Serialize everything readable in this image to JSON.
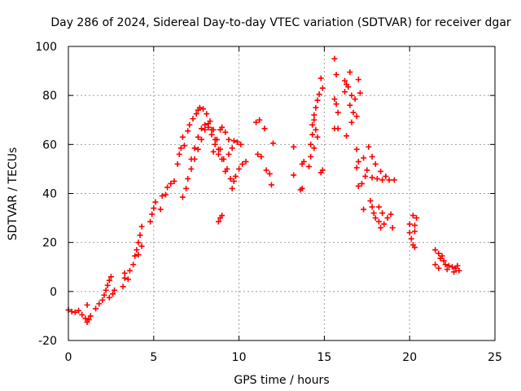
{
  "chart_data": {
    "type": "scatter",
    "title": "Day 286 of 2024, Sidereal Day-to-day VTEC variation (SDTVAR) for receiver dgar",
    "xlabel": "GPS time / hours",
    "ylabel": "SDTVAR / TECUs",
    "xlim": [
      0,
      25
    ],
    "ylim": [
      -20,
      100
    ],
    "x_ticks": [
      0,
      5,
      10,
      15,
      20,
      25
    ],
    "y_ticks": [
      -20,
      0,
      20,
      40,
      60,
      80,
      100
    ],
    "grid": true,
    "marker": "+",
    "color": "#ff0000",
    "series": [
      {
        "name": "SDTVAR",
        "points": [
          [
            0.0,
            -7.5
          ],
          [
            0.2,
            -8.2
          ],
          [
            0.4,
            -8.5
          ],
          [
            0.6,
            -7.8
          ],
          [
            0.8,
            -9.5
          ],
          [
            1.0,
            -11.0
          ],
          [
            1.1,
            -12.5
          ],
          [
            1.2,
            -11.5
          ],
          [
            1.3,
            -10.0
          ],
          [
            1.1,
            -5.5
          ],
          [
            1.6,
            -7.0
          ],
          [
            1.8,
            -5.0
          ],
          [
            2.0,
            -3.5
          ],
          [
            2.1,
            -1.5
          ],
          [
            2.2,
            0.5
          ],
          [
            2.3,
            2.5
          ],
          [
            2.4,
            4.5
          ],
          [
            2.5,
            6.0
          ],
          [
            2.4,
            -2.5
          ],
          [
            2.6,
            -1.0
          ],
          [
            2.7,
            0.5
          ],
          [
            3.2,
            2.0
          ],
          [
            3.3,
            5.5
          ],
          [
            3.3,
            7.5
          ],
          [
            3.5,
            5.0
          ],
          [
            3.6,
            8.5
          ],
          [
            3.8,
            11.0
          ],
          [
            3.9,
            14.5
          ],
          [
            4.0,
            17.0
          ],
          [
            4.1,
            20.0
          ],
          [
            4.2,
            23.0
          ],
          [
            4.3,
            26.5
          ],
          [
            4.1,
            15.0
          ],
          [
            4.3,
            18.5
          ],
          [
            4.8,
            28.5
          ],
          [
            4.9,
            31.5
          ],
          [
            5.0,
            34.0
          ],
          [
            5.1,
            36.5
          ],
          [
            5.4,
            33.5
          ],
          [
            5.5,
            39.0
          ],
          [
            5.7,
            39.5
          ],
          [
            5.8,
            42.5
          ],
          [
            6.0,
            44.0
          ],
          [
            6.2,
            45.0
          ],
          [
            6.4,
            52.0
          ],
          [
            6.5,
            56.0
          ],
          [
            6.6,
            58.5
          ],
          [
            6.8,
            59.5
          ],
          [
            6.7,
            63.0
          ],
          [
            7.0,
            65.5
          ],
          [
            7.1,
            68.0
          ],
          [
            7.3,
            70.5
          ],
          [
            7.5,
            72.5
          ],
          [
            7.6,
            74.0
          ],
          [
            7.7,
            75.0
          ],
          [
            7.9,
            74.5
          ],
          [
            8.1,
            72.5
          ],
          [
            8.3,
            69.5
          ],
          [
            8.5,
            66.0
          ],
          [
            8.7,
            62.0
          ],
          [
            8.9,
            58.0
          ],
          [
            9.1,
            54.0
          ],
          [
            9.3,
            50.0
          ],
          [
            9.5,
            46.0
          ],
          [
            9.6,
            42.0
          ],
          [
            9.7,
            45.0
          ],
          [
            6.7,
            38.5
          ],
          [
            6.9,
            42.0
          ],
          [
            7.0,
            46.0
          ],
          [
            7.2,
            50.0
          ],
          [
            7.4,
            54.0
          ],
          [
            7.6,
            58.0
          ],
          [
            7.8,
            62.0
          ],
          [
            8.0,
            66.0
          ],
          [
            8.2,
            68.5
          ],
          [
            8.4,
            66.0
          ],
          [
            8.6,
            62.0
          ],
          [
            8.8,
            58.0
          ],
          [
            9.0,
            54.0
          ],
          [
            9.2,
            49.0
          ],
          [
            7.2,
            54.0
          ],
          [
            7.4,
            58.5
          ],
          [
            7.6,
            63.0
          ],
          [
            7.8,
            66.5
          ],
          [
            8.0,
            68.0
          ],
          [
            8.2,
            67.0
          ],
          [
            8.4,
            64.0
          ],
          [
            8.6,
            60.0
          ],
          [
            8.8,
            56.0
          ],
          [
            8.5,
            57.0
          ],
          [
            8.7,
            62.0
          ],
          [
            8.9,
            66.0
          ],
          [
            9.0,
            67.0
          ],
          [
            9.2,
            65.0
          ],
          [
            9.4,
            62.0
          ],
          [
            8.8,
            28.5
          ],
          [
            8.9,
            30.0
          ],
          [
            9.0,
            31.0
          ],
          [
            9.4,
            56.0
          ],
          [
            9.6,
            58.5
          ],
          [
            9.7,
            61.5
          ],
          [
            9.9,
            61.0
          ],
          [
            10.1,
            60.0
          ],
          [
            9.8,
            47.0
          ],
          [
            10.0,
            50.0
          ],
          [
            10.2,
            52.0
          ],
          [
            10.4,
            53.0
          ],
          [
            11.0,
            69.0
          ],
          [
            11.2,
            70.0
          ],
          [
            11.5,
            66.5
          ],
          [
            11.1,
            56.0
          ],
          [
            11.3,
            55.0
          ],
          [
            11.6,
            49.5
          ],
          [
            11.8,
            48.0
          ],
          [
            11.9,
            43.5
          ],
          [
            12.0,
            60.5
          ],
          [
            13.2,
            59.0
          ],
          [
            13.2,
            47.5
          ],
          [
            13.6,
            41.5
          ],
          [
            13.7,
            42.0
          ],
          [
            13.7,
            52.0
          ],
          [
            13.8,
            53.0
          ],
          [
            14.1,
            51.0
          ],
          [
            14.2,
            55.0
          ],
          [
            14.2,
            60.0
          ],
          [
            14.3,
            64.0
          ],
          [
            14.3,
            68.0
          ],
          [
            14.4,
            72.0
          ],
          [
            14.5,
            75.0
          ],
          [
            14.6,
            78.0
          ],
          [
            14.7,
            80.5
          ],
          [
            14.4,
            58.5
          ],
          [
            14.6,
            63.0
          ],
          [
            14.5,
            66.0
          ],
          [
            14.4,
            70.0
          ],
          [
            14.8,
            48.5
          ],
          [
            14.8,
            87.0
          ],
          [
            14.9,
            83.0
          ],
          [
            14.9,
            49.5
          ],
          [
            15.6,
            95.0
          ],
          [
            15.7,
            88.5
          ],
          [
            15.6,
            78.5
          ],
          [
            15.7,
            76.5
          ],
          [
            15.6,
            66.5
          ],
          [
            15.8,
            66.5
          ],
          [
            15.8,
            73.0
          ],
          [
            16.2,
            86.0
          ],
          [
            16.3,
            84.5
          ],
          [
            16.2,
            81.5
          ],
          [
            16.4,
            83.5
          ],
          [
            16.5,
            89.5
          ],
          [
            16.6,
            80.0
          ],
          [
            16.5,
            76.0
          ],
          [
            16.7,
            73.0
          ],
          [
            16.6,
            69.0
          ],
          [
            16.8,
            78.5
          ],
          [
            16.9,
            71.5
          ],
          [
            17.0,
            86.5
          ],
          [
            17.1,
            81.0
          ],
          [
            16.3,
            63.5
          ],
          [
            16.9,
            58.0
          ],
          [
            17.0,
            53.0
          ],
          [
            16.9,
            50.5
          ],
          [
            17.0,
            43.0
          ],
          [
            17.2,
            44.0
          ],
          [
            17.3,
            54.5
          ],
          [
            17.5,
            49.5
          ],
          [
            17.4,
            47.0
          ],
          [
            17.3,
            33.5
          ],
          [
            17.6,
            59.0
          ],
          [
            17.8,
            55.0
          ],
          [
            18.0,
            52.0
          ],
          [
            18.3,
            49.0
          ],
          [
            18.6,
            47.0
          ],
          [
            17.8,
            46.5
          ],
          [
            18.1,
            46.0
          ],
          [
            18.4,
            45.5
          ],
          [
            18.8,
            45.5
          ],
          [
            19.1,
            45.5
          ],
          [
            17.7,
            37.0
          ],
          [
            17.8,
            34.5
          ],
          [
            17.9,
            32.0
          ],
          [
            18.0,
            30.0
          ],
          [
            18.2,
            28.5
          ],
          [
            18.3,
            26.0
          ],
          [
            18.5,
            27.5
          ],
          [
            18.7,
            30.0
          ],
          [
            18.9,
            31.5
          ],
          [
            18.2,
            34.5
          ],
          [
            18.4,
            32.0
          ],
          [
            19.0,
            26.0
          ],
          [
            20.0,
            27.5
          ],
          [
            20.0,
            24.0
          ],
          [
            20.1,
            21.5
          ],
          [
            20.2,
            19.0
          ],
          [
            20.3,
            18.0
          ],
          [
            20.3,
            24.5
          ],
          [
            20.3,
            27.0
          ],
          [
            20.2,
            31.0
          ],
          [
            20.4,
            30.0
          ],
          [
            21.5,
            17.0
          ],
          [
            21.7,
            15.5
          ],
          [
            21.8,
            13.5
          ],
          [
            21.5,
            11.0
          ],
          [
            21.7,
            9.5
          ],
          [
            21.9,
            14.5
          ],
          [
            22.0,
            12.5
          ],
          [
            22.1,
            11.0
          ],
          [
            22.3,
            10.5
          ],
          [
            22.5,
            10.0
          ],
          [
            22.7,
            9.5
          ],
          [
            22.9,
            8.5
          ],
          [
            22.8,
            10.5
          ],
          [
            22.2,
            9.0
          ],
          [
            22.6,
            8.0
          ]
        ]
      }
    ]
  }
}
